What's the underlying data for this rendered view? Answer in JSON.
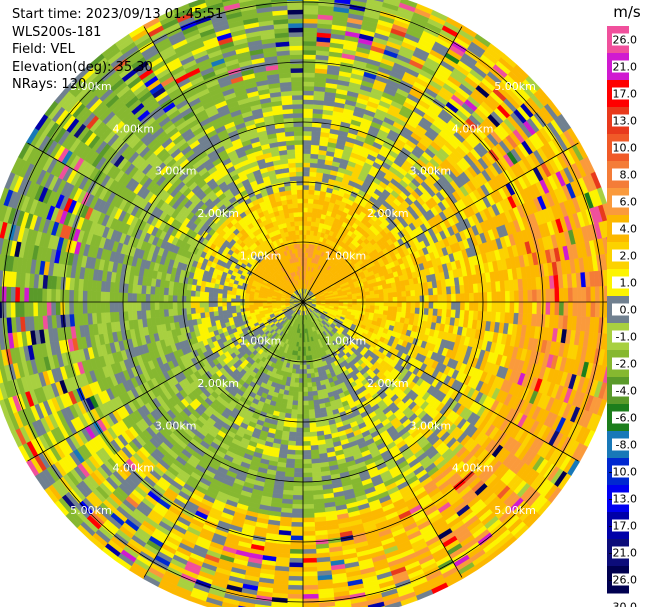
{
  "header": {
    "start_time": "Start time: 2023/09/13 01:45:51",
    "instrument": "WLS200s-181",
    "field": "Field: VEL",
    "elevation": "Elevation(deg): 35.30",
    "nrays": "NRays: 120"
  },
  "chart_data": {
    "type": "heatmap",
    "projection": "polar-ppi",
    "field": "VEL",
    "unit": "m/s",
    "n_rays": 120,
    "elevation_deg": 35.3,
    "range_rings_km": [
      1,
      2,
      3,
      4,
      5
    ],
    "ring_labels": [
      "1.00km",
      "2.00km",
      "3.00km",
      "4.00km",
      "5.00km"
    ],
    "max_range_km": 5.3,
    "spoke_angles_deg": [
      0,
      30,
      60,
      90,
      120,
      150,
      180,
      210,
      240,
      270,
      300,
      330
    ],
    "colorbar": {
      "title": "m/s",
      "ticks": [
        "26.0",
        "21.0",
        "17.0",
        "13.0",
        "10.0",
        "8.0",
        "6.0",
        "4.0",
        "2.0",
        "1.0",
        "0.0",
        "-1.0",
        "-2.0",
        "-4.0",
        "-6.0",
        "-8.0",
        "-10.0",
        "-13.0",
        "-17.0",
        "-21.0",
        "-26.0",
        "-30.0"
      ],
      "colors": [
        "#f0509c",
        "#d01ad0",
        "#ff0000",
        "#e83a1c",
        "#f05a28",
        "#f47c38",
        "#fa9a3c",
        "#fcb800",
        "#fcd200",
        "#fcf400",
        "#708090",
        "#a8d040",
        "#86b830",
        "#5a9a2a",
        "#1c7e1c",
        "#1878b8",
        "#0028d0",
        "#0000f0",
        "#0000a8",
        "#0c0c7a",
        "#000050"
      ]
    },
    "rings": [
      {
        "range_km": [
          0.0,
          0.2
        ],
        "sector_mean": {
          "N": 0.0,
          "E": 0.0,
          "S": 0.0,
          "W": 0.0
        }
      },
      {
        "range_km": [
          0.2,
          0.9
        ],
        "sector_mean": {
          "N": 4.0,
          "E": 2.0,
          "S": -4.0,
          "W": 2.0
        }
      },
      {
        "range_km": [
          0.9,
          1.8
        ],
        "sector_mean": {
          "N": 2.0,
          "E": 2.0,
          "S": -2.0,
          "W": 0.0
        }
      },
      {
        "range_km": [
          1.8,
          2.6
        ],
        "sector_mean": {
          "N": 0.0,
          "E": 1.0,
          "S": -1.0,
          "W": -2.0
        }
      },
      {
        "range_km": [
          2.6,
          3.6
        ],
        "sector_mean": {
          "N": -1.0,
          "E": 2.0,
          "S": -2.0,
          "W": -2.0
        }
      },
      {
        "range_km": [
          3.6,
          5.3
        ],
        "sector_mean": {
          "N": -2.0,
          "E": 4.0,
          "S": 2.0,
          "W": -2.0
        }
      }
    ]
  }
}
